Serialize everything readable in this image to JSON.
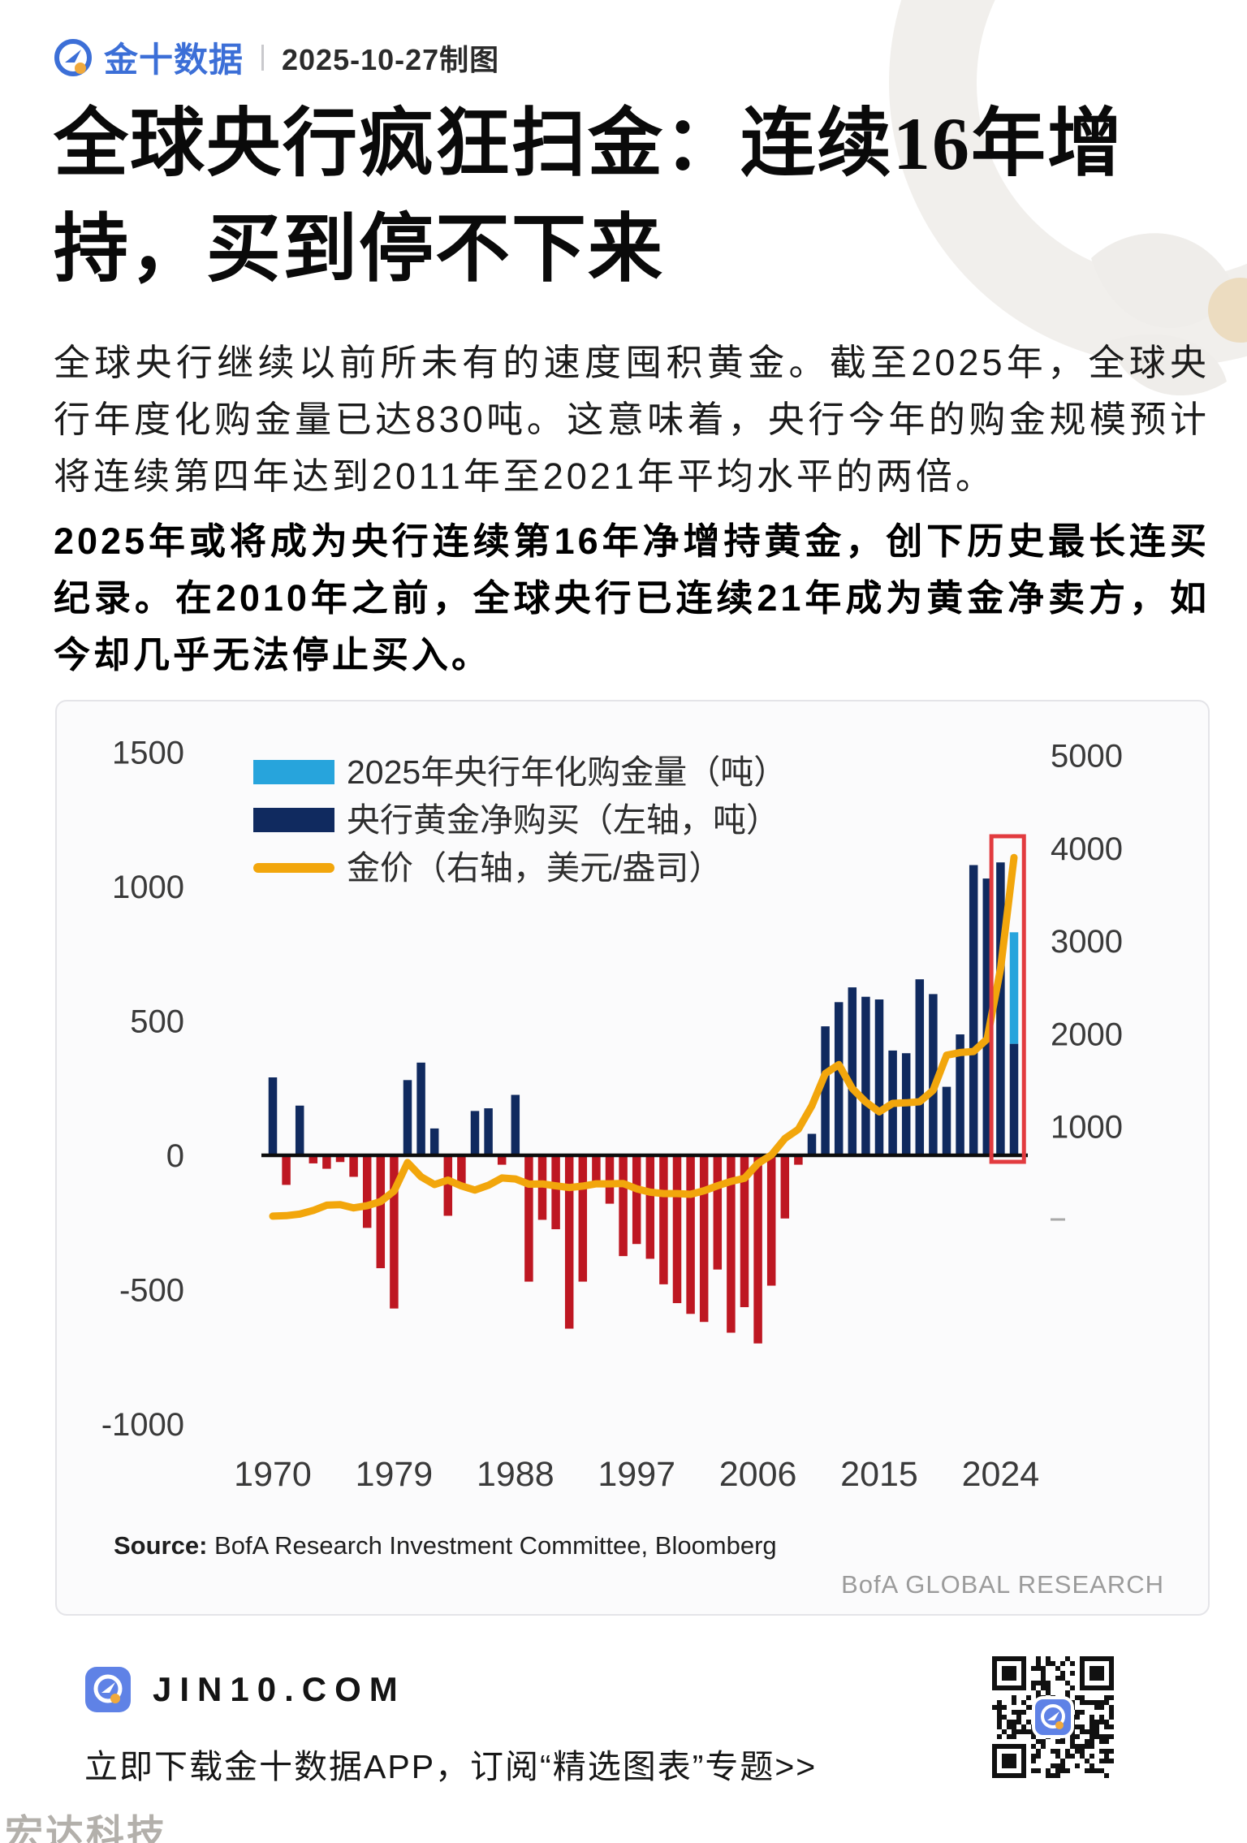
{
  "header": {
    "brand": "金十数据",
    "date_label": "2025-10-27制图"
  },
  "title": {
    "line1": "全球央行疯狂扫金：连续16年增",
    "line2": "持，买到停不下来"
  },
  "paragraphs": {
    "intro": "全球央行继续以前所未有的速度囤积黄金。截至2025年，全球央行年度化购金量已达830吨。这意味着，央行今年的购金规模预计将连续第四年达到2011年至2021年平均水平的两倍。",
    "highlight": "2025年或将成为央行连续第16年净增持黄金，创下历史最长连买纪录。在2010年之前，全球央行已连续21年成为黄金净卖方，如今却几乎无法停止买入。"
  },
  "chart_data": {
    "type": "bar+line (dual axis)",
    "title": "",
    "legend": [
      {
        "label": "2025年央行年化购金量（吨）",
        "color": "#27A4DC",
        "kind": "bar"
      },
      {
        "label": "央行黄金净购买（左轴，吨）",
        "color": "#102A5F",
        "kind": "bar"
      },
      {
        "label": "金价（右轴，美元/盎司）",
        "color": "#F2A60C",
        "kind": "line"
      }
    ],
    "left_axis": {
      "label": "央行黄金净购买（吨）",
      "ticks": [
        1500,
        1000,
        500,
        0,
        -500,
        -1000
      ],
      "range": [
        -1000,
        1500
      ]
    },
    "right_axis": {
      "label": "金价（美元/盎司）",
      "ticks": [
        5000,
        4000,
        3000,
        2000,
        1000
      ],
      "zero_dash": true,
      "range": [
        0,
        5000
      ]
    },
    "x_axis": {
      "ticks": [
        1970,
        1979,
        1988,
        1997,
        2006,
        2015,
        2024
      ],
      "range": [
        1970,
        2025
      ]
    },
    "start_year": 1970,
    "net_purchases": [
      290,
      -110,
      185,
      -30,
      -50,
      -25,
      -80,
      -270,
      -420,
      -570,
      280,
      345,
      100,
      -225,
      -110,
      165,
      175,
      -35,
      225,
      -470,
      -240,
      -275,
      -645,
      -470,
      -110,
      -180,
      -375,
      -330,
      -385,
      -480,
      -550,
      -590,
      -620,
      -425,
      -660,
      -565,
      -700,
      -485,
      -235,
      -35,
      80,
      480,
      570,
      625,
      590,
      580,
      390,
      380,
      655,
      600,
      255,
      450,
      1080,
      1030,
      1090
    ],
    "bar_2025_actual": 415,
    "annualized_2025": 830,
    "gold_price": [
      36,
      41,
      58,
      97,
      154,
      160,
      125,
      148,
      193,
      306,
      613,
      460,
      376,
      424,
      361,
      317,
      368,
      447,
      437,
      381,
      383,
      362,
      344,
      360,
      384,
      384,
      388,
      331,
      294,
      279,
      279,
      271,
      310,
      363,
      410,
      444,
      604,
      695,
      872,
      972,
      1225,
      1572,
      1669,
      1411,
      1266,
      1160,
      1251,
      1257,
      1269,
      1393,
      1770,
      1799,
      1810,
      1943,
      2700,
      3900
    ],
    "highlight_box_years": [
      2024,
      2025
    ],
    "colors": {
      "positive_bar": "#102A5F",
      "negative_bar": "#BE1722",
      "annualized_bar": "#27A4DC",
      "gold_line": "#F2A60C",
      "highlight_box": "#E23B3F",
      "baseline": "#0d0d0d",
      "axis_text": "#3a3a3a"
    },
    "source_bold": "Source:",
    "source_rest": " BofA Research Investment Committee, Bloomberg",
    "brand_right": "BofA GLOBAL RESEARCH"
  },
  "footer": {
    "site": "JIN10.COM",
    "cta": "立即下载金十数据APP，订阅“精选图表”专题>>"
  },
  "watermark": "宏达科技"
}
